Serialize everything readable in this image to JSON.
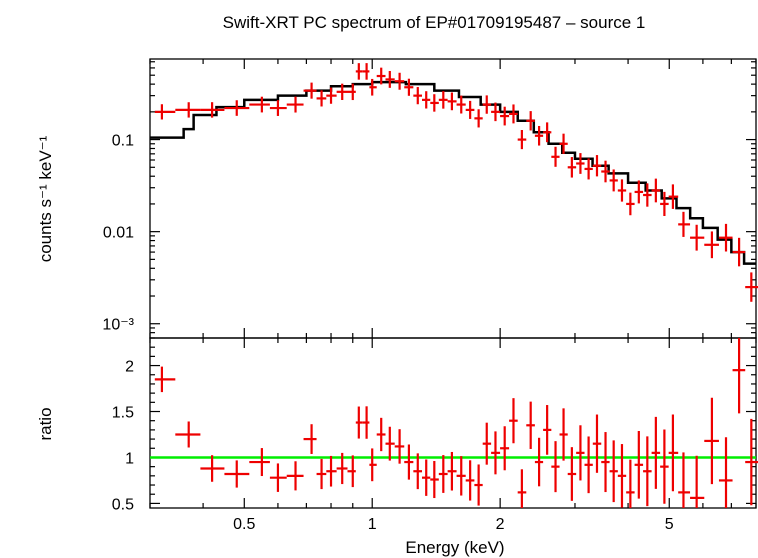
{
  "chart_data": [
    {
      "type": "scatter",
      "panel": "spectrum",
      "title": "Swift-XRT PC spectrum of EP#01709195487 – source 1",
      "ylabel": "counts s⁻¹ keV⁻¹",
      "xlabel": "",
      "x_scale": "log",
      "y_scale": "log",
      "xlim": [
        0.3,
        8.0
      ],
      "ylim": [
        0.0007,
        0.75
      ],
      "y_ticks": [
        {
          "value": 0.1,
          "label": "0.1"
        },
        {
          "value": 0.01,
          "label": "0.01"
        },
        {
          "value": 0.001,
          "label": "10⁻³"
        }
      ],
      "series": [
        {
          "kind": "data",
          "color": "#ee0000",
          "points": [
            {
              "x": 0.32,
              "y": 0.2
            },
            {
              "x": 0.37,
              "y": 0.21
            },
            {
              "x": 0.42,
              "y": 0.21
            },
            {
              "x": 0.48,
              "y": 0.22
            },
            {
              "x": 0.55,
              "y": 0.24
            },
            {
              "x": 0.6,
              "y": 0.22
            },
            {
              "x": 0.66,
              "y": 0.24
            },
            {
              "x": 0.72,
              "y": 0.34
            },
            {
              "x": 0.76,
              "y": 0.28
            },
            {
              "x": 0.8,
              "y": 0.3
            },
            {
              "x": 0.85,
              "y": 0.33
            },
            {
              "x": 0.9,
              "y": 0.33
            },
            {
              "x": 0.93,
              "y": 0.55
            },
            {
              "x": 0.97,
              "y": 0.55
            },
            {
              "x": 1.0,
              "y": 0.37
            },
            {
              "x": 1.05,
              "y": 0.49
            },
            {
              "x": 1.1,
              "y": 0.45
            },
            {
              "x": 1.16,
              "y": 0.43
            },
            {
              "x": 1.22,
              "y": 0.37
            },
            {
              "x": 1.28,
              "y": 0.3
            },
            {
              "x": 1.34,
              "y": 0.27
            },
            {
              "x": 1.4,
              "y": 0.25
            },
            {
              "x": 1.47,
              "y": 0.27
            },
            {
              "x": 1.54,
              "y": 0.26
            },
            {
              "x": 1.62,
              "y": 0.24
            },
            {
              "x": 1.7,
              "y": 0.21
            },
            {
              "x": 1.78,
              "y": 0.17
            },
            {
              "x": 1.86,
              "y": 0.24
            },
            {
              "x": 1.95,
              "y": 0.2
            },
            {
              "x": 2.05,
              "y": 0.18
            },
            {
              "x": 2.15,
              "y": 0.19
            },
            {
              "x": 2.25,
              "y": 0.1
            },
            {
              "x": 2.36,
              "y": 0.16
            },
            {
              "x": 2.47,
              "y": 0.11
            },
            {
              "x": 2.58,
              "y": 0.12
            },
            {
              "x": 2.7,
              "y": 0.065
            },
            {
              "x": 2.82,
              "y": 0.09
            },
            {
              "x": 2.95,
              "y": 0.05
            },
            {
              "x": 3.09,
              "y": 0.055
            },
            {
              "x": 3.23,
              "y": 0.048
            },
            {
              "x": 3.38,
              "y": 0.052
            },
            {
              "x": 3.54,
              "y": 0.045
            },
            {
              "x": 3.7,
              "y": 0.036
            },
            {
              "x": 3.87,
              "y": 0.028
            },
            {
              "x": 4.05,
              "y": 0.02
            },
            {
              "x": 4.24,
              "y": 0.027
            },
            {
              "x": 4.44,
              "y": 0.025
            },
            {
              "x": 4.65,
              "y": 0.028
            },
            {
              "x": 4.87,
              "y": 0.02
            },
            {
              "x": 5.1,
              "y": 0.024
            },
            {
              "x": 5.4,
              "y": 0.012
            },
            {
              "x": 5.8,
              "y": 0.0086
            },
            {
              "x": 6.3,
              "y": 0.0072
            },
            {
              "x": 6.8,
              "y": 0.0086
            },
            {
              "x": 7.3,
              "y": 0.006
            },
            {
              "x": 7.8,
              "y": 0.0025
            }
          ]
        },
        {
          "kind": "model",
          "color": "#000000",
          "steps": [
            {
              "x": 0.3,
              "y": 0.105
            },
            {
              "x": 0.36,
              "y": 0.13
            },
            {
              "x": 0.38,
              "y": 0.185
            },
            {
              "x": 0.43,
              "y": 0.225
            },
            {
              "x": 0.5,
              "y": 0.27
            },
            {
              "x": 0.6,
              "y": 0.3
            },
            {
              "x": 0.7,
              "y": 0.34
            },
            {
              "x": 0.8,
              "y": 0.38
            },
            {
              "x": 0.9,
              "y": 0.4
            },
            {
              "x": 1.0,
              "y": 0.42
            },
            {
              "x": 1.2,
              "y": 0.4
            },
            {
              "x": 1.4,
              "y": 0.34
            },
            {
              "x": 1.6,
              "y": 0.29
            },
            {
              "x": 1.8,
              "y": 0.24
            },
            {
              "x": 2.0,
              "y": 0.2
            },
            {
              "x": 2.2,
              "y": 0.16
            },
            {
              "x": 2.4,
              "y": 0.12
            },
            {
              "x": 2.6,
              "y": 0.09
            },
            {
              "x": 2.8,
              "y": 0.072
            },
            {
              "x": 3.0,
              "y": 0.062
            },
            {
              "x": 3.3,
              "y": 0.052
            },
            {
              "x": 3.6,
              "y": 0.043
            },
            {
              "x": 4.0,
              "y": 0.034
            },
            {
              "x": 4.4,
              "y": 0.028
            },
            {
              "x": 4.8,
              "y": 0.023
            },
            {
              "x": 5.2,
              "y": 0.018
            },
            {
              "x": 5.6,
              "y": 0.014
            },
            {
              "x": 6.0,
              "y": 0.011
            },
            {
              "x": 6.5,
              "y": 0.0082
            },
            {
              "x": 7.0,
              "y": 0.006
            },
            {
              "x": 7.5,
              "y": 0.0045
            },
            {
              "x": 8.0,
              "y": 0.0045
            }
          ]
        }
      ]
    },
    {
      "type": "scatter",
      "panel": "ratio",
      "xlabel": "Energy (keV)",
      "ylabel": "ratio",
      "x_scale": "log",
      "xlim": [
        0.3,
        8.0
      ],
      "ylim": [
        0.45,
        2.3
      ],
      "x_ticks": [
        {
          "value": 0.5,
          "label": "0.5"
        },
        {
          "value": 1,
          "label": "1"
        },
        {
          "value": 2,
          "label": "2"
        },
        {
          "value": 5,
          "label": "5"
        }
      ],
      "y_ticks": [
        {
          "value": 0.5,
          "label": "0.5"
        },
        {
          "value": 1,
          "label": "1"
        },
        {
          "value": 1.5,
          "label": "1.5"
        },
        {
          "value": 2,
          "label": "2"
        }
      ],
      "reference_line": {
        "y": 1,
        "color": "#00ee00"
      },
      "series": [
        {
          "kind": "ratio",
          "color": "#ee0000",
          "points": [
            {
              "x": 0.32,
              "y": 1.85
            },
            {
              "x": 0.37,
              "y": 1.25
            },
            {
              "x": 0.42,
              "y": 0.88
            },
            {
              "x": 0.48,
              "y": 0.82
            },
            {
              "x": 0.55,
              "y": 0.95
            },
            {
              "x": 0.6,
              "y": 0.78
            },
            {
              "x": 0.66,
              "y": 0.8
            },
            {
              "x": 0.72,
              "y": 1.2
            },
            {
              "x": 0.76,
              "y": 0.82
            },
            {
              "x": 0.8,
              "y": 0.85
            },
            {
              "x": 0.85,
              "y": 0.88
            },
            {
              "x": 0.9,
              "y": 0.85
            },
            {
              "x": 0.93,
              "y": 1.38
            },
            {
              "x": 0.97,
              "y": 1.38
            },
            {
              "x": 1.0,
              "y": 0.92
            },
            {
              "x": 1.05,
              "y": 1.25
            },
            {
              "x": 1.1,
              "y": 1.15
            },
            {
              "x": 1.16,
              "y": 1.12
            },
            {
              "x": 1.22,
              "y": 0.95
            },
            {
              "x": 1.28,
              "y": 0.85
            },
            {
              "x": 1.34,
              "y": 0.78
            },
            {
              "x": 1.4,
              "y": 0.76
            },
            {
              "x": 1.47,
              "y": 0.82
            },
            {
              "x": 1.54,
              "y": 0.85
            },
            {
              "x": 1.62,
              "y": 0.8
            },
            {
              "x": 1.7,
              "y": 0.75
            },
            {
              "x": 1.78,
              "y": 0.7
            },
            {
              "x": 1.86,
              "y": 1.15
            },
            {
              "x": 1.95,
              "y": 1.05
            },
            {
              "x": 2.05,
              "y": 1.1
            },
            {
              "x": 2.15,
              "y": 1.4
            },
            {
              "x": 2.25,
              "y": 0.62
            },
            {
              "x": 2.36,
              "y": 1.35
            },
            {
              "x": 2.47,
              "y": 0.95
            },
            {
              "x": 2.58,
              "y": 1.3
            },
            {
              "x": 2.7,
              "y": 0.9
            },
            {
              "x": 2.82,
              "y": 1.25
            },
            {
              "x": 2.95,
              "y": 0.82
            },
            {
              "x": 3.09,
              "y": 1.05
            },
            {
              "x": 3.23,
              "y": 0.92
            },
            {
              "x": 3.38,
              "y": 1.15
            },
            {
              "x": 3.54,
              "y": 0.95
            },
            {
              "x": 3.7,
              "y": 0.85
            },
            {
              "x": 3.87,
              "y": 0.8
            },
            {
              "x": 4.05,
              "y": 0.62
            },
            {
              "x": 4.24,
              "y": 0.92
            },
            {
              "x": 4.44,
              "y": 0.85
            },
            {
              "x": 4.65,
              "y": 1.05
            },
            {
              "x": 4.87,
              "y": 0.9
            },
            {
              "x": 5.1,
              "y": 1.05
            },
            {
              "x": 5.4,
              "y": 0.62
            },
            {
              "x": 5.8,
              "y": 0.56
            },
            {
              "x": 6.3,
              "y": 1.18
            },
            {
              "x": 6.8,
              "y": 0.75
            },
            {
              "x": 7.3,
              "y": 1.95
            },
            {
              "x": 7.8,
              "y": 0.95
            }
          ]
        }
      ]
    }
  ]
}
